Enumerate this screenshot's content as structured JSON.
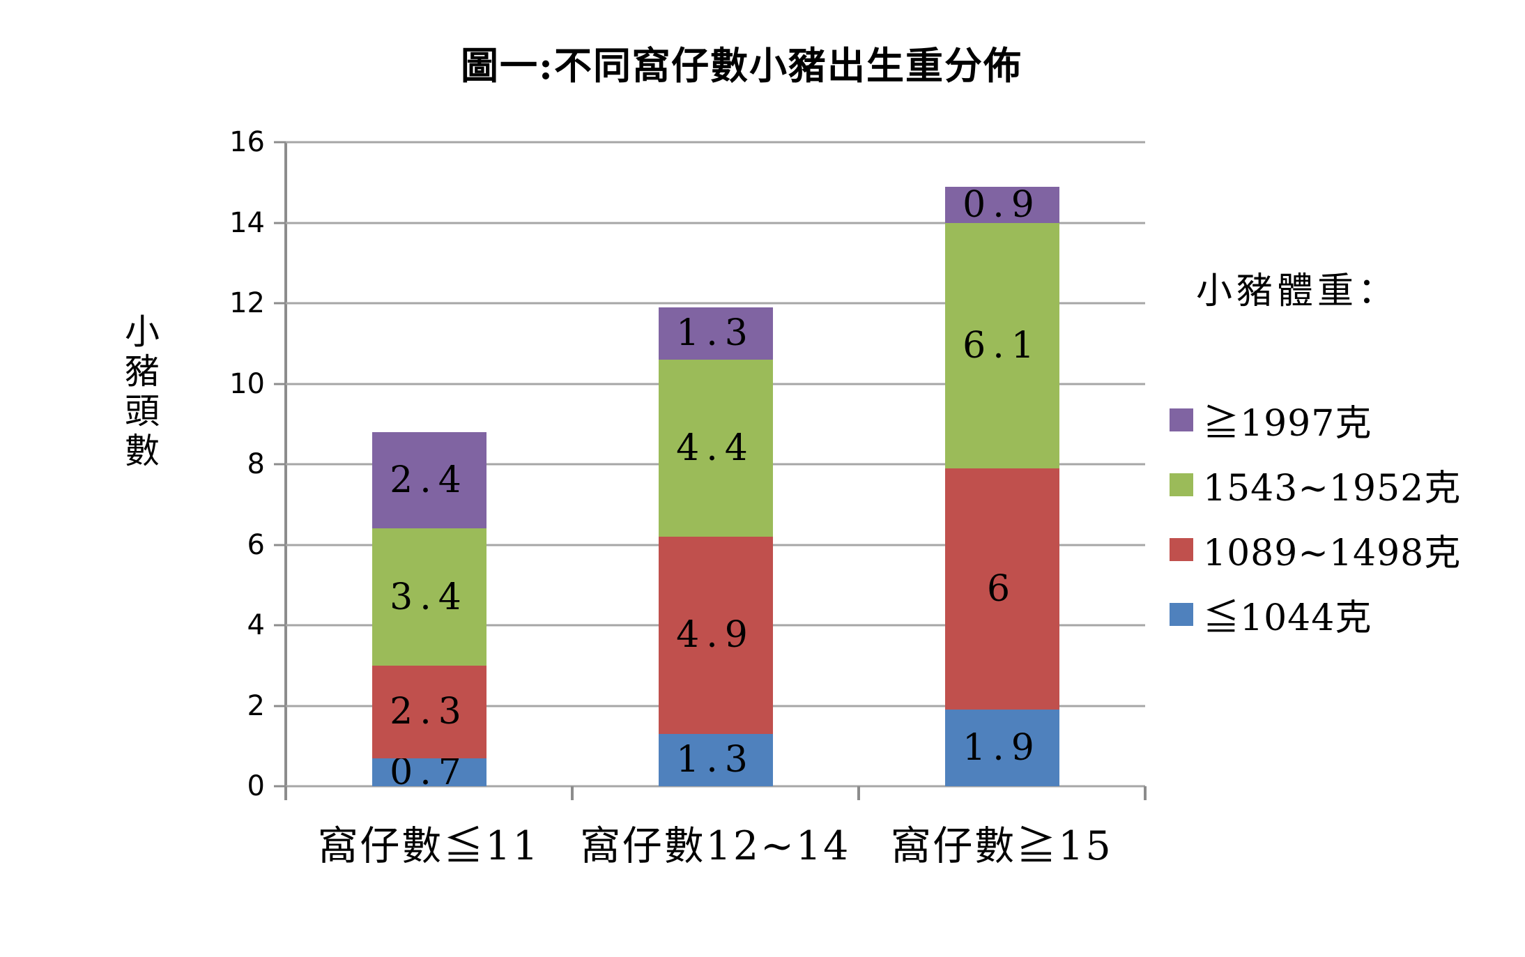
{
  "title": "圖一:不同窩仔數小豬出生重分佈",
  "y_axis": {
    "title": "小豬頭數",
    "ticks": [
      0,
      2,
      4,
      6,
      8,
      10,
      12,
      14,
      16
    ],
    "max": 16
  },
  "legend": {
    "title": "小豬體重："
  },
  "colors": {
    "blue": "#4F81BD",
    "red": "#C0504D",
    "green": "#9BBB59",
    "purple": "#8064A2",
    "gridline": "#A6A6A6",
    "axis": "#8C8C8C",
    "background": "#FFFFFF",
    "text": "#000000"
  },
  "chart_data": {
    "type": "bar",
    "stacked": true,
    "title": "圖一:不同窩仔數小豬出生重分佈",
    "xlabel": "",
    "ylabel": "小豬頭數",
    "ylim": [
      0,
      16
    ],
    "grid": true,
    "legend_position": "right",
    "categories": [
      "窩仔數≦11",
      "窩仔數12~14",
      "窩仔數≧15"
    ],
    "series": [
      {
        "name": "≦1044克",
        "color": "#4F81BD",
        "values": [
          0.7,
          1.3,
          1.9
        ],
        "labels": [
          "0.7",
          "1.3",
          "1.9"
        ]
      },
      {
        "name": "1089~1498克",
        "color": "#C0504D",
        "values": [
          2.3,
          4.9,
          6.0
        ],
        "labels": [
          "2.3",
          "4.9",
          "6"
        ]
      },
      {
        "name": "1543~1952克",
        "color": "#9BBB59",
        "values": [
          3.4,
          4.4,
          6.1
        ],
        "labels": [
          "3.4",
          "4.4",
          "6.1"
        ]
      },
      {
        "name": "≧1997克",
        "color": "#8064A2",
        "values": [
          2.4,
          1.3,
          0.9
        ],
        "labels": [
          "2.4",
          "1.3",
          "0.9"
        ]
      }
    ],
    "totals": [
      8.8,
      11.9,
      14.9
    ],
    "legend_order_top_to_bottom": [
      "≧1997克",
      "1543~1952克",
      "1089~1498克",
      "≦1044克"
    ]
  }
}
